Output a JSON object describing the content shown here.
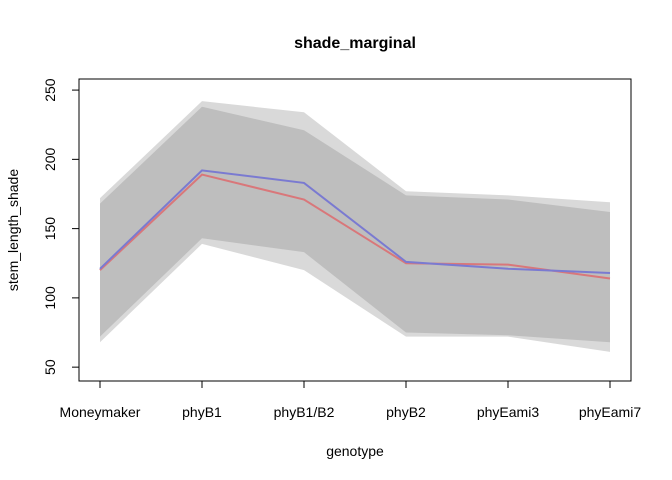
{
  "chart_data": {
    "type": "line",
    "title": "shade_marginal",
    "xlabel": "genotype",
    "ylabel": "stem_length_shade",
    "categories": [
      "Moneymaker",
      "phyB1",
      "phyB1/B2",
      "phyB2",
      "phyEami3",
      "phyEami7"
    ],
    "ylim": [
      40,
      258
    ],
    "yticks": [
      50,
      100,
      150,
      200,
      250
    ],
    "grid": false,
    "bands": [
      {
        "color": "#d9d9d9",
        "lower": [
          68,
          139,
          120,
          72,
          72,
          61
        ],
        "upper": [
          172,
          242,
          234,
          177,
          174,
          169
        ]
      },
      {
        "color": "#bebebe",
        "lower": [
          72,
          143,
          133,
          75,
          73,
          68
        ],
        "upper": [
          168,
          238,
          221,
          174,
          171,
          162
        ]
      }
    ],
    "series": [
      {
        "color": "#d9777a",
        "values": [
          120,
          189,
          171,
          125,
          124,
          114
        ]
      },
      {
        "color": "#7a7ad1",
        "values": [
          121,
          192,
          183,
          126,
          121,
          118
        ]
      }
    ]
  }
}
